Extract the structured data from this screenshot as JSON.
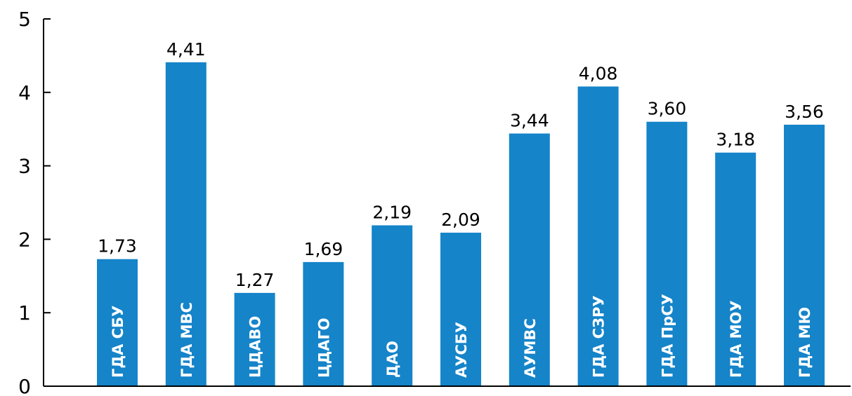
{
  "chart_data": {
    "type": "bar",
    "categories": [
      "ГДА СБУ",
      "ГДА МВС",
      "ЦДАВО",
      "ЦДАГО",
      "ДАО",
      "АУСБУ",
      "АУМВС",
      "ГДА СЗРУ",
      "ГДА ПрСУ",
      "ГДА МОУ",
      "ГДА МЮ"
    ],
    "values": [
      1.73,
      4.41,
      1.27,
      1.69,
      2.19,
      2.09,
      3.44,
      4.08,
      3.6,
      3.18,
      3.56
    ],
    "value_labels": [
      "1,73",
      "4,41",
      "1,27",
      "1,69",
      "2,19",
      "2,09",
      "3,44",
      "4,08",
      "3,60",
      "3,18",
      "3,56"
    ],
    "yticks": [
      "0",
      "1",
      "2",
      "3",
      "4",
      "5"
    ],
    "ylim": [
      0,
      5
    ],
    "title": "",
    "xlabel": "",
    "ylabel": "",
    "grid": false,
    "legend": "none",
    "colors": {
      "bar": "#1584c9",
      "axis": "#000000"
    }
  }
}
